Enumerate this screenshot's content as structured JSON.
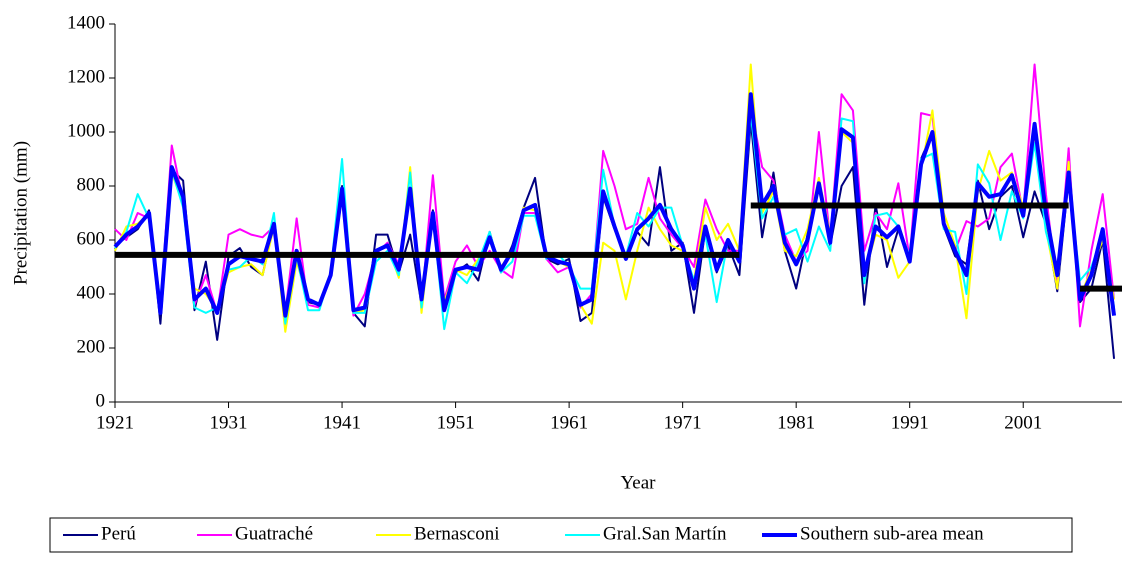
{
  "chart_data": {
    "type": "line",
    "x_label": "Year",
    "y_label": "Precipitation (mm)",
    "x": [
      1921,
      1922,
      1923,
      1924,
      1925,
      1926,
      1927,
      1928,
      1929,
      1930,
      1931,
      1932,
      1933,
      1934,
      1935,
      1936,
      1937,
      1938,
      1939,
      1940,
      1941,
      1942,
      1943,
      1944,
      1945,
      1946,
      1947,
      1948,
      1949,
      1950,
      1951,
      1952,
      1953,
      1954,
      1955,
      1956,
      1957,
      1958,
      1959,
      1960,
      1961,
      1962,
      1963,
      1964,
      1965,
      1966,
      1967,
      1968,
      1969,
      1970,
      1971,
      1972,
      1973,
      1974,
      1975,
      1976,
      1977,
      1978,
      1979,
      1980,
      1981,
      1982,
      1983,
      1984,
      1985,
      1986,
      1987,
      1988,
      1989,
      1990,
      1991,
      1992,
      1993,
      1994,
      1995,
      1996,
      1997,
      1998,
      1999,
      2000,
      2001,
      2002,
      2003,
      2004,
      2005,
      2006,
      2007,
      2008,
      2009
    ],
    "xlim": [
      1921,
      2009.7
    ],
    "xticks": [
      1921,
      1931,
      1941,
      1951,
      1961,
      1971,
      1981,
      1991,
      2001
    ],
    "ylim": [
      0,
      1400
    ],
    "yticks": [
      0,
      200,
      400,
      600,
      800,
      1000,
      1200,
      1400
    ],
    "legend": "bottom",
    "series": [
      {
        "name": "Perú",
        "color": "#000080",
        "values": [
          580,
          610,
          640,
          710,
          290,
          860,
          820,
          340,
          520,
          230,
          540,
          570,
          500,
          470,
          660,
          300,
          560,
          370,
          360,
          470,
          800,
          330,
          280,
          620,
          620,
          480,
          620,
          360,
          710,
          360,
          480,
          510,
          450,
          630,
          480,
          580,
          720,
          830,
          530,
          510,
          530,
          300,
          330,
          760,
          640,
          540,
          630,
          580,
          870,
          560,
          590,
          330,
          640,
          480,
          580,
          470,
          1040,
          610,
          850,
          560,
          420,
          620,
          800,
          580,
          800,
          870,
          360,
          730,
          500,
          640,
          520,
          900,
          1000,
          650,
          540,
          510,
          820,
          640,
          760,
          800,
          610,
          780,
          660,
          410,
          830,
          370,
          420,
          600,
          160
        ]
      },
      {
        "name": "Guatraché",
        "color": "#ff00ff",
        "values": [
          640,
          600,
          700,
          680,
          350,
          950,
          740,
          360,
          470,
          330,
          620,
          640,
          620,
          610,
          650,
          330,
          680,
          360,
          350,
          480,
          760,
          320,
          400,
          550,
          590,
          510,
          770,
          360,
          840,
          380,
          520,
          580,
          500,
          560,
          490,
          460,
          700,
          700,
          530,
          480,
          500,
          350,
          400,
          930,
          800,
          640,
          660,
          830,
          680,
          620,
          570,
          500,
          750,
          640,
          560,
          560,
          1100,
          870,
          820,
          620,
          520,
          560,
          1000,
          600,
          1140,
          1080,
          560,
          700,
          640,
          810,
          530,
          1070,
          1060,
          670,
          560,
          670,
          650,
          680,
          870,
          920,
          700,
          1250,
          770,
          420,
          940,
          280,
          560,
          770,
          380
        ]
      },
      {
        "name": "Bernasconi",
        "color": "#ffff00",
        "values": [
          560,
          650,
          660,
          700,
          350,
          850,
          730,
          420,
          400,
          340,
          480,
          500,
          510,
          470,
          650,
          260,
          520,
          380,
          360,
          480,
          790,
          330,
          340,
          560,
          580,
          460,
          870,
          330,
          700,
          370,
          490,
          470,
          530,
          600,
          500,
          560,
          720,
          710,
          550,
          520,
          500,
          360,
          290,
          590,
          560,
          380,
          560,
          720,
          640,
          580,
          560,
          450,
          720,
          600,
          660,
          560,
          1250,
          700,
          780,
          560,
          540,
          640,
          830,
          620,
          1000,
          960,
          470,
          620,
          600,
          460,
          520,
          860,
          1080,
          700,
          580,
          310,
          780,
          930,
          820,
          850,
          720,
          1000,
          640,
          420,
          890,
          390,
          490,
          600,
          380
        ]
      },
      {
        "name": "Gral.San Martín",
        "color": "#00ffff",
        "values": [
          570,
          630,
          770,
          680,
          370,
          860,
          720,
          350,
          330,
          350,
          490,
          500,
          540,
          510,
          700,
          290,
          540,
          340,
          340,
          480,
          900,
          330,
          330,
          520,
          560,
          470,
          850,
          350,
          690,
          270,
          480,
          440,
          520,
          630,
          480,
          520,
          690,
          690,
          530,
          550,
          500,
          420,
          420,
          860,
          650,
          540,
          700,
          650,
          720,
          720,
          580,
          450,
          620,
          370,
          600,
          530,
          1070,
          680,
          760,
          620,
          640,
          520,
          650,
          560,
          1050,
          1040,
          440,
          690,
          700,
          650,
          540,
          900,
          920,
          640,
          630,
          400,
          880,
          810,
          600,
          780,
          680,
          960,
          630,
          470,
          830,
          450,
          500,
          620,
          350
        ]
      },
      {
        "name": "Southern sub-area mean",
        "color": "#0000ff",
        "values": [
          575,
          620,
          650,
          700,
          330,
          870,
          760,
          380,
          420,
          330,
          510,
          540,
          530,
          520,
          660,
          320,
          560,
          380,
          360,
          470,
          790,
          340,
          350,
          560,
          580,
          490,
          790,
          380,
          700,
          340,
          490,
          500,
          490,
          610,
          490,
          560,
          710,
          730,
          540,
          520,
          510,
          360,
          380,
          780,
          650,
          530,
          640,
          680,
          730,
          640,
          580,
          420,
          650,
          490,
          600,
          520,
          1140,
          730,
          800,
          590,
          510,
          600,
          810,
          590,
          1010,
          980,
          470,
          650,
          610,
          650,
          520,
          880,
          1000,
          660,
          560,
          470,
          810,
          760,
          770,
          840,
          690,
          1030,
          700,
          470,
          850,
          380,
          470,
          640,
          320
        ]
      }
    ],
    "reference_lines": [
      {
        "x": [
          1921,
          1976
        ],
        "y": 545,
        "color": "#000000"
      },
      {
        "x": [
          1977,
          2005
        ],
        "y": 728,
        "color": "#000000"
      },
      {
        "x": [
          2006,
          2009.7
        ],
        "y": 420,
        "color": "#000000"
      }
    ]
  }
}
